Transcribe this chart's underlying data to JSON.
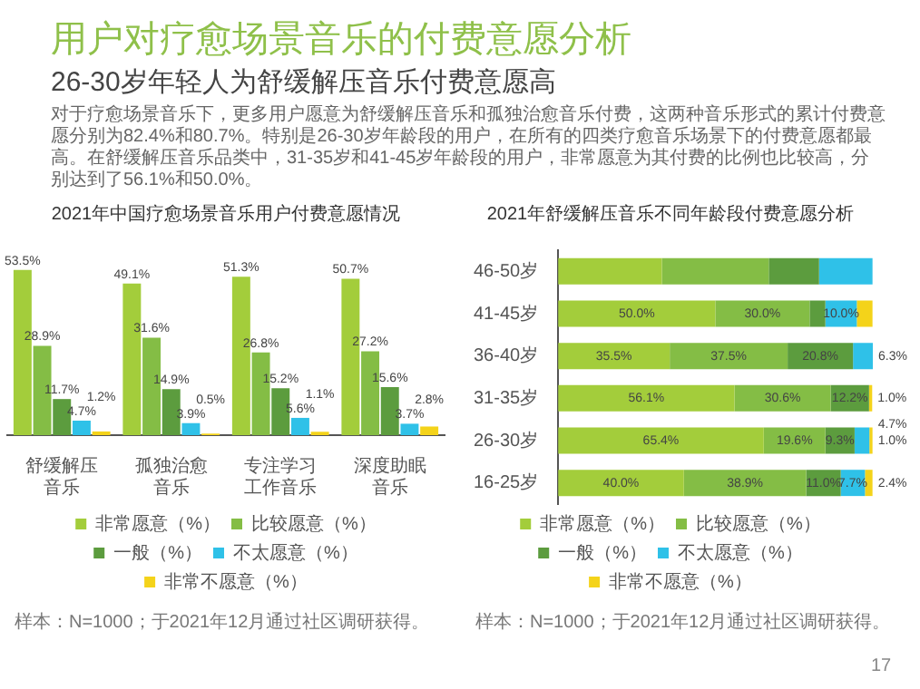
{
  "chart_data": [
    {
      "type": "other",
      "title": "用户对疗愈场景音乐的付费意愿分析",
      "subtitle": "26-30岁年轻人为舒缓解压音乐付费意愿高",
      "annotations": [
        "对于疗愈场景音乐下，更多用户愿意为舒缓解压音乐和孤独治愈音乐付费，这两种音乐形式的累计付费意愿分别为82.4%和80.7%。特别是26-30岁年龄段的用户，在所有的四类疗愈音乐场景下的付费意愿都最高。在舒缓解压音乐品类中，31-35岁和41-45岁年龄段的用户，非常愿意为其付费的比例也比较高，分别达到了56.1%和50.0%。",
        "17"
      ]
    },
    {
      "type": "bar",
      "title": "2021年中国疗愈场景音乐用户付费意愿情况",
      "categories": [
        "舒缓解压音乐",
        "孤独治愈音乐",
        "专注学习工作音乐",
        "深度助眠音乐"
      ],
      "legend": "bottom",
      "tick_labels": "x",
      "annotations": [
        "样本：N=1000；于2021年12月通过社区调研获得。"
      ],
      "series": [
        {
          "name": "非常愿意（%）",
          "color": "#a3cd3b",
          "values": [
            53.5,
            49.1,
            51.3,
            50.7
          ],
          "value_labels": [
            "53.5%",
            "49.1%",
            "51.3%",
            "50.7%"
          ]
        },
        {
          "name": "比较愿意（%）",
          "color": "#84bd45",
          "values": [
            28.9,
            31.6,
            26.8,
            27.2
          ],
          "value_labels": [
            "28.9%",
            "31.6%",
            "26.8%",
            "27.2%"
          ]
        },
        {
          "name": "一般（%）",
          "color": "#5c9c3e",
          "values": [
            11.7,
            14.9,
            15.2,
            15.6
          ],
          "value_labels": [
            "11.7%",
            "14.9%",
            "15.2%",
            "15.6%"
          ]
        },
        {
          "name": "不太愿意（%）",
          "color": "#2fc1e8",
          "values": [
            4.7,
            3.9,
            5.6,
            3.7
          ],
          "value_labels": [
            "4.7%",
            "3.9%",
            "5.6%",
            "3.7%"
          ]
        },
        {
          "name": "非常不愿意（%）",
          "color": "#f4d31a",
          "values": [
            1.2,
            0.5,
            1.1,
            2.8
          ],
          "value_labels": [
            "1.2%",
            "0.5%",
            "1.1%",
            "2.8%"
          ]
        }
      ]
    },
    {
      "type": "bar",
      "title": "2021年舒缓解压音乐不同年龄段付费意愿分析",
      "orientation": "horizontal",
      "stacked": true,
      "categories": [
        "46-50岁",
        "41-45岁",
        "36-40岁",
        "31-35岁",
        "26-30岁",
        "16-25岁"
      ],
      "legend": "bottom",
      "tick_labels": "y",
      "annotations": [
        "样本：N=1000；于2021年12月通过社区调研获得。"
      ],
      "series": [
        {
          "name": "非常愿意（%）",
          "color": "#a3cd3b",
          "values": [
            33.0,
            50.0,
            35.5,
            56.1,
            65.4,
            40.0
          ],
          "value_labels": [
            null,
            "50.0%",
            "35.5%",
            "56.1%",
            "65.4%",
            "40.0%"
          ]
        },
        {
          "name": "比较愿意（%）",
          "color": "#84bd45",
          "values": [
            34.0,
            30.0,
            37.5,
            30.6,
            19.6,
            38.9
          ],
          "value_labels": [
            null,
            "30.0%",
            "37.5%",
            "30.6%",
            "19.6%",
            "38.9%"
          ]
        },
        {
          "name": "一般（%）",
          "color": "#5c9c3e",
          "values": [
            16.0,
            5.0,
            20.8,
            12.2,
            9.3,
            11.0
          ],
          "value_labels": [
            null,
            null,
            "20.8%",
            "12.2%",
            "9.3%",
            "11.0%"
          ]
        },
        {
          "name": "不太愿意（%）",
          "color": "#2fc1e8",
          "values": [
            17.0,
            10.0,
            6.3,
            null,
            4.7,
            7.7
          ],
          "value_labels": [
            null,
            "10.0%",
            "6.3%",
            null,
            "4.7%",
            "7.7%"
          ]
        },
        {
          "name": "非常不愿意（%）",
          "color": "#f4d31a",
          "values": [
            null,
            5.0,
            null,
            1.0,
            1.0,
            2.4
          ],
          "value_labels": [
            null,
            null,
            null,
            "1.0%",
            "1.0%",
            "2.4%"
          ]
        }
      ]
    }
  ]
}
